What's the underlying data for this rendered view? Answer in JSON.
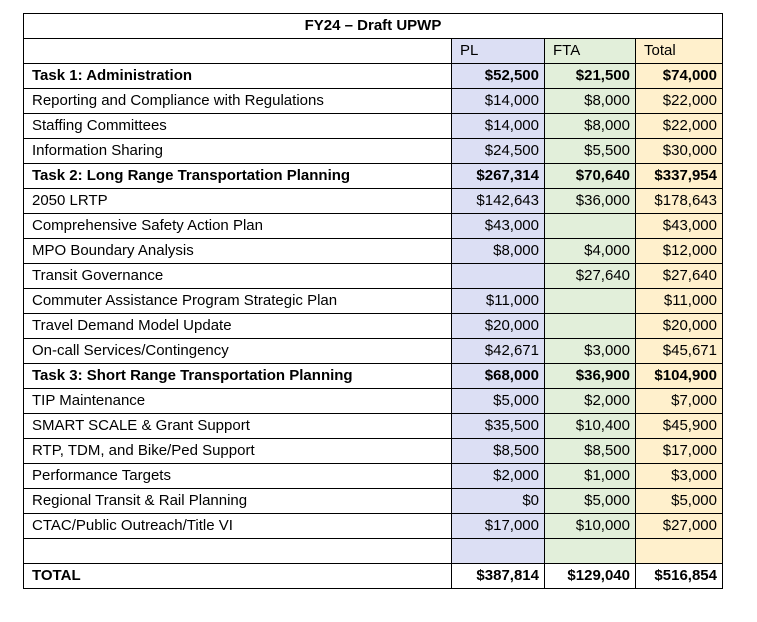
{
  "title": "FY24 – Draft UPWP",
  "headers": {
    "pl": "PL",
    "fta": "FTA",
    "total": "Total"
  },
  "rows": [
    {
      "label": "Task 1: Administration",
      "pl": "$52,500",
      "fta": "$21,500",
      "total": "$74,000",
      "bold": true
    },
    {
      "label": "Reporting and Compliance with Regulations",
      "pl": "$14,000",
      "fta": "$8,000",
      "total": "$22,000",
      "bold": false
    },
    {
      "label": "Staffing Committees",
      "pl": "$14,000",
      "fta": "$8,000",
      "total": "$22,000",
      "bold": false
    },
    {
      "label": "Information Sharing",
      "pl": "$24,500",
      "fta": "$5,500",
      "total": "$30,000",
      "bold": false
    },
    {
      "label": "Task 2: Long Range Transportation Planning",
      "pl": "$267,314",
      "fta": "$70,640",
      "total": "$337,954",
      "bold": true
    },
    {
      "label": "2050 LRTP",
      "pl": "$142,643",
      "fta": "$36,000",
      "total": "$178,643",
      "bold": false
    },
    {
      "label": "Comprehensive Safety Action Plan",
      "pl": "$43,000",
      "fta": "",
      "total": "$43,000",
      "bold": false
    },
    {
      "label": "MPO Boundary Analysis",
      "pl": "$8,000",
      "fta": "$4,000",
      "total": "$12,000",
      "bold": false
    },
    {
      "label": "Transit Governance",
      "pl": "",
      "fta": "$27,640",
      "total": "$27,640",
      "bold": false
    },
    {
      "label": "Commuter Assistance Program Strategic Plan",
      "pl": "$11,000",
      "fta": "",
      "total": "$11,000",
      "bold": false
    },
    {
      "label": "Travel Demand Model Update",
      "pl": "$20,000",
      "fta": "",
      "total": "$20,000",
      "bold": false
    },
    {
      "label": "On-call Services/Contingency",
      "pl": "$42,671",
      "fta": "$3,000",
      "total": "$45,671",
      "bold": false
    },
    {
      "label": "Task 3: Short Range Transportation Planning",
      "pl": "$68,000",
      "fta": "$36,900",
      "total": "$104,900",
      "bold": true
    },
    {
      "label": "TIP Maintenance",
      "pl": "$5,000",
      "fta": "$2,000",
      "total": "$7,000",
      "bold": false
    },
    {
      "label": "SMART SCALE & Grant Support",
      "pl": "$35,500",
      "fta": "$10,400",
      "total": "$45,900",
      "bold": false
    },
    {
      "label": "RTP, TDM, and Bike/Ped Support",
      "pl": "$8,500",
      "fta": "$8,500",
      "total": "$17,000",
      "bold": false
    },
    {
      "label": "Performance Targets",
      "pl": "$2,000",
      "fta": "$1,000",
      "total": "$3,000",
      "bold": false
    },
    {
      "label": "Regional Transit & Rail Planning",
      "pl": "$0",
      "fta": "$5,000",
      "total": "$5,000",
      "bold": false
    },
    {
      "label": "CTAC/Public Outreach/Title VI",
      "pl": "$17,000",
      "fta": "$10,000",
      "total": "$27,000",
      "bold": false
    }
  ],
  "total": {
    "label": "TOTAL",
    "pl": "$387,814",
    "fta": "$129,040",
    "total": "$516,854"
  },
  "colors": {
    "pl_fill": "#dcdff4",
    "fta_fill": "#e2efda",
    "total_fill": "#fff0cc"
  }
}
